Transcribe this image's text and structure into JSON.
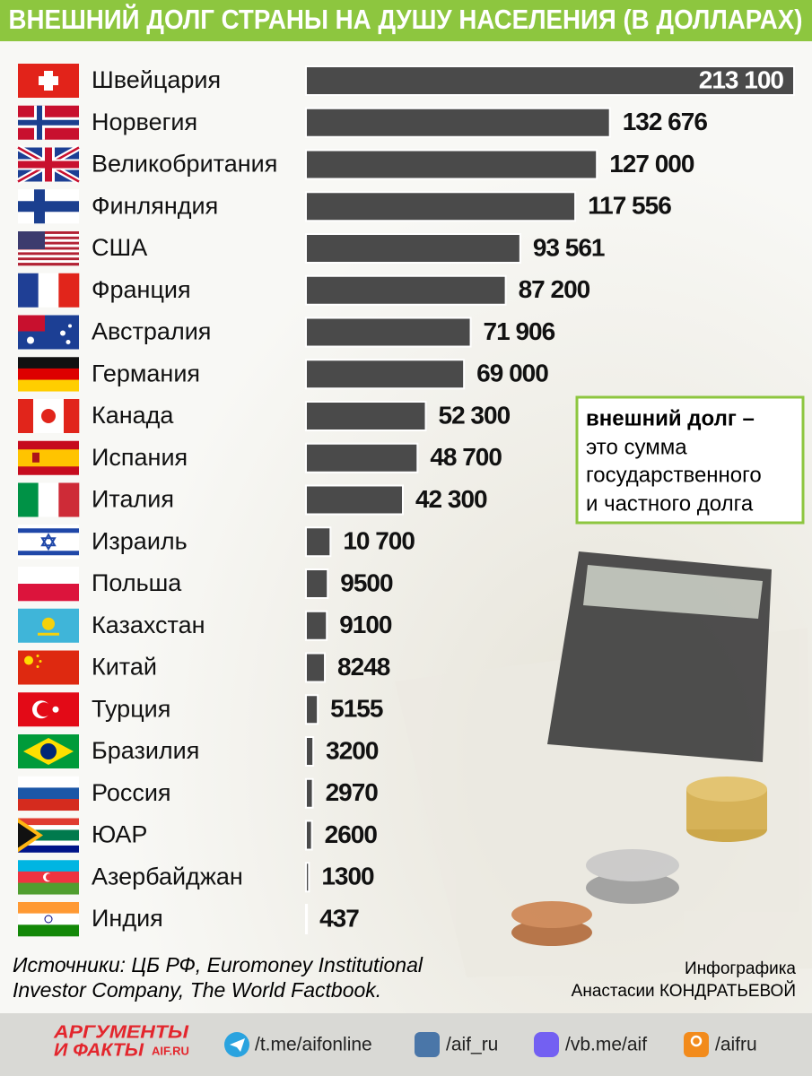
{
  "chart_data": {
    "type": "bar",
    "orientation": "horizontal",
    "title": "ВНЕШНИЙ ДОЛГ СТРАНЫ НА ДУШУ НАСЕЛЕНИЯ (В ДОЛЛАРАХ)",
    "categories": [
      "Швейцария",
      "Норвегия",
      "Великобритания",
      "Финляндия",
      "США",
      "Франция",
      "Австралия",
      "Германия",
      "Канада",
      "Испания",
      "Италия",
      "Израиль",
      "Польша",
      "Казахстан",
      "Китай",
      "Турция",
      "Бразилия",
      "Россия",
      "ЮАР",
      "Азербайджан",
      "Индия"
    ],
    "values": [
      213100,
      132676,
      127000,
      117556,
      93561,
      87200,
      71906,
      69000,
      52300,
      48700,
      42300,
      10700,
      9500,
      9100,
      8248,
      5155,
      3200,
      2970,
      2600,
      1300,
      437
    ],
    "value_labels": [
      "213 100",
      "132 676",
      "127 000",
      "117 556",
      "93 561",
      "87 200",
      "71 906",
      "69 000",
      "52 300",
      "48 700",
      "42 300",
      "10 700",
      "9500",
      "9100",
      "8248",
      "5155",
      "3200",
      "2970",
      "2600",
      "1300",
      "437"
    ],
    "color": "#4a4a4a",
    "note": {
      "term": "внешний долг –",
      "lines": [
        "это сумма",
        "государственного",
        "и частного долга"
      ]
    },
    "sources": [
      "Источники: ЦБ РФ, Euromoney Institutional",
      "Investor Company, The World Factbook."
    ],
    "credit": [
      "Инфографика",
      "Анастасии КОНДРАТЬЕВОЙ"
    ]
  },
  "footer": {
    "logo": [
      "АРГУМЕНТЫ",
      "И ФАКТЫ",
      "AIF.RU"
    ],
    "links": [
      "/t.me/aifonline",
      "/aif_ru",
      "/vb.me/aif",
      "/aifru"
    ]
  }
}
